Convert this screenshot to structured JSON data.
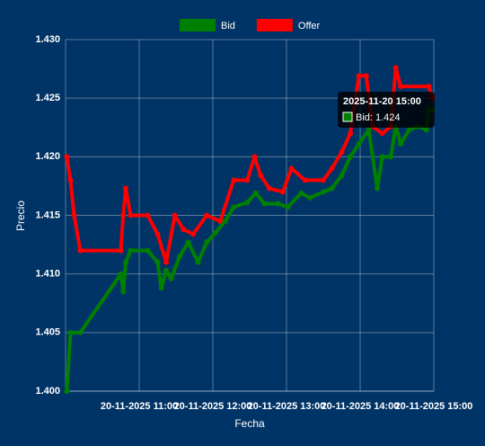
{
  "chart_data": {
    "type": "line",
    "x_label": "Fecha",
    "y_label": "Precio",
    "legend": "top",
    "grid": true,
    "xlim": [
      "20-11-2025 10:00",
      "20-11-2025 15:00"
    ],
    "xticks": [
      "20-11-2025 11:00",
      "20-11-2025 12:00",
      "20-11-2025 13:00",
      "20-11-2025 14:00",
      "20-11-2025 15:00"
    ],
    "ylim": [
      1.4,
      1.43
    ],
    "yticks": [
      {
        "value": 1.4,
        "label": "1.400"
      },
      1.405,
      {
        "value": 1.41,
        "label": "1.410"
      },
      1.415,
      {
        "value": 1.42,
        "label": "1.420"
      },
      1.425,
      {
        "value": 1.43,
        "label": "1.430"
      }
    ],
    "series": [
      {
        "name": "Bid",
        "color": "#008000",
        "x": [
          "20-11-2025 10:01",
          "20-11-2025 10:04",
          "20-11-2025 10:12",
          "20-11-2025 10:45",
          "20-11-2025 10:47",
          "20-11-2025 10:49",
          "20-11-2025 10:53",
          "20-11-2025 11:07",
          "20-11-2025 11:15",
          "20-11-2025 11:18",
          "20-11-2025 11:22",
          "20-11-2025 11:26",
          "20-11-2025 11:33",
          "20-11-2025 11:40",
          "20-11-2025 11:48",
          "20-11-2025 11:55",
          "20-11-2025 12:02",
          "20-11-2025 12:10",
          "20-11-2025 12:17",
          "20-11-2025 12:28",
          "20-11-2025 12:35",
          "20-11-2025 12:42",
          "20-11-2025 12:53",
          "20-11-2025 13:01",
          "20-11-2025 13:12",
          "20-11-2025 13:19",
          "20-11-2025 13:30",
          "20-11-2025 13:37",
          "20-11-2025 13:45",
          "20-11-2025 13:52",
          "20-11-2025 13:59",
          "20-11-2025 14:07",
          "20-11-2025 14:14",
          "20-11-2025 14:18",
          "20-11-2025 14:25",
          "20-11-2025 14:29",
          "20-11-2025 14:33",
          "20-11-2025 14:40",
          "20-11-2025 14:47",
          "20-11-2025 14:54",
          "20-11-2025 14:56",
          "20-11-2025 14:59"
        ],
        "values": [
          1.4,
          1.405,
          1.405,
          1.41,
          1.4085,
          1.411,
          1.412,
          1.412,
          1.411,
          1.4088,
          1.4103,
          1.4096,
          1.4115,
          1.4127,
          1.411,
          1.4127,
          1.4135,
          1.4145,
          1.4157,
          1.4161,
          1.4169,
          1.416,
          1.416,
          1.4157,
          1.4169,
          1.4165,
          1.417,
          1.4173,
          1.4184,
          1.42,
          1.4211,
          1.4223,
          1.4173,
          1.42,
          1.42,
          1.4226,
          1.4211,
          1.4223,
          1.4226,
          1.4223,
          1.424,
          1.424
        ]
      },
      {
        "name": "Offer",
        "color": "#ff0000",
        "x": [
          "20-11-2025 10:01",
          "20-11-2025 10:04",
          "20-11-2025 10:07",
          "20-11-2025 10:12",
          "20-11-2025 10:45",
          "20-11-2025 10:47",
          "20-11-2025 10:49",
          "20-11-2025 10:53",
          "20-11-2025 11:07",
          "20-11-2025 11:15",
          "20-11-2025 11:22",
          "20-11-2025 11:29",
          "20-11-2025 11:36",
          "20-11-2025 11:44",
          "20-11-2025 11:55",
          "20-11-2025 12:06",
          "20-11-2025 12:17",
          "20-11-2025 12:28",
          "20-11-2025 12:34",
          "20-11-2025 12:39",
          "20-11-2025 12:46",
          "20-11-2025 12:57",
          "20-11-2025 13:04",
          "20-11-2025 13:15",
          "20-11-2025 13:30",
          "20-11-2025 13:37",
          "20-11-2025 13:45",
          "20-11-2025 13:52",
          "20-11-2025 13:59",
          "20-11-2025 14:05",
          "20-11-2025 14:10",
          "20-11-2025 14:18",
          "20-11-2025 14:25",
          "20-11-2025 14:29",
          "20-11-2025 14:33",
          "20-11-2025 14:56",
          "20-11-2025 14:59"
        ],
        "values": [
          1.42,
          1.418,
          1.415,
          1.412,
          1.412,
          1.415,
          1.4173,
          1.415,
          1.415,
          1.4134,
          1.411,
          1.415,
          1.4138,
          1.4134,
          1.415,
          1.4145,
          1.418,
          1.418,
          1.42,
          1.4184,
          1.4173,
          1.417,
          1.419,
          1.418,
          1.418,
          1.419,
          1.4204,
          1.422,
          1.4269,
          1.4269,
          1.4226,
          1.422,
          1.4226,
          1.4276,
          1.426,
          1.426,
          1.425
        ]
      }
    ],
    "tooltip": {
      "title": "2025-11-20 15:00",
      "label": "Bid: 1.424"
    }
  }
}
